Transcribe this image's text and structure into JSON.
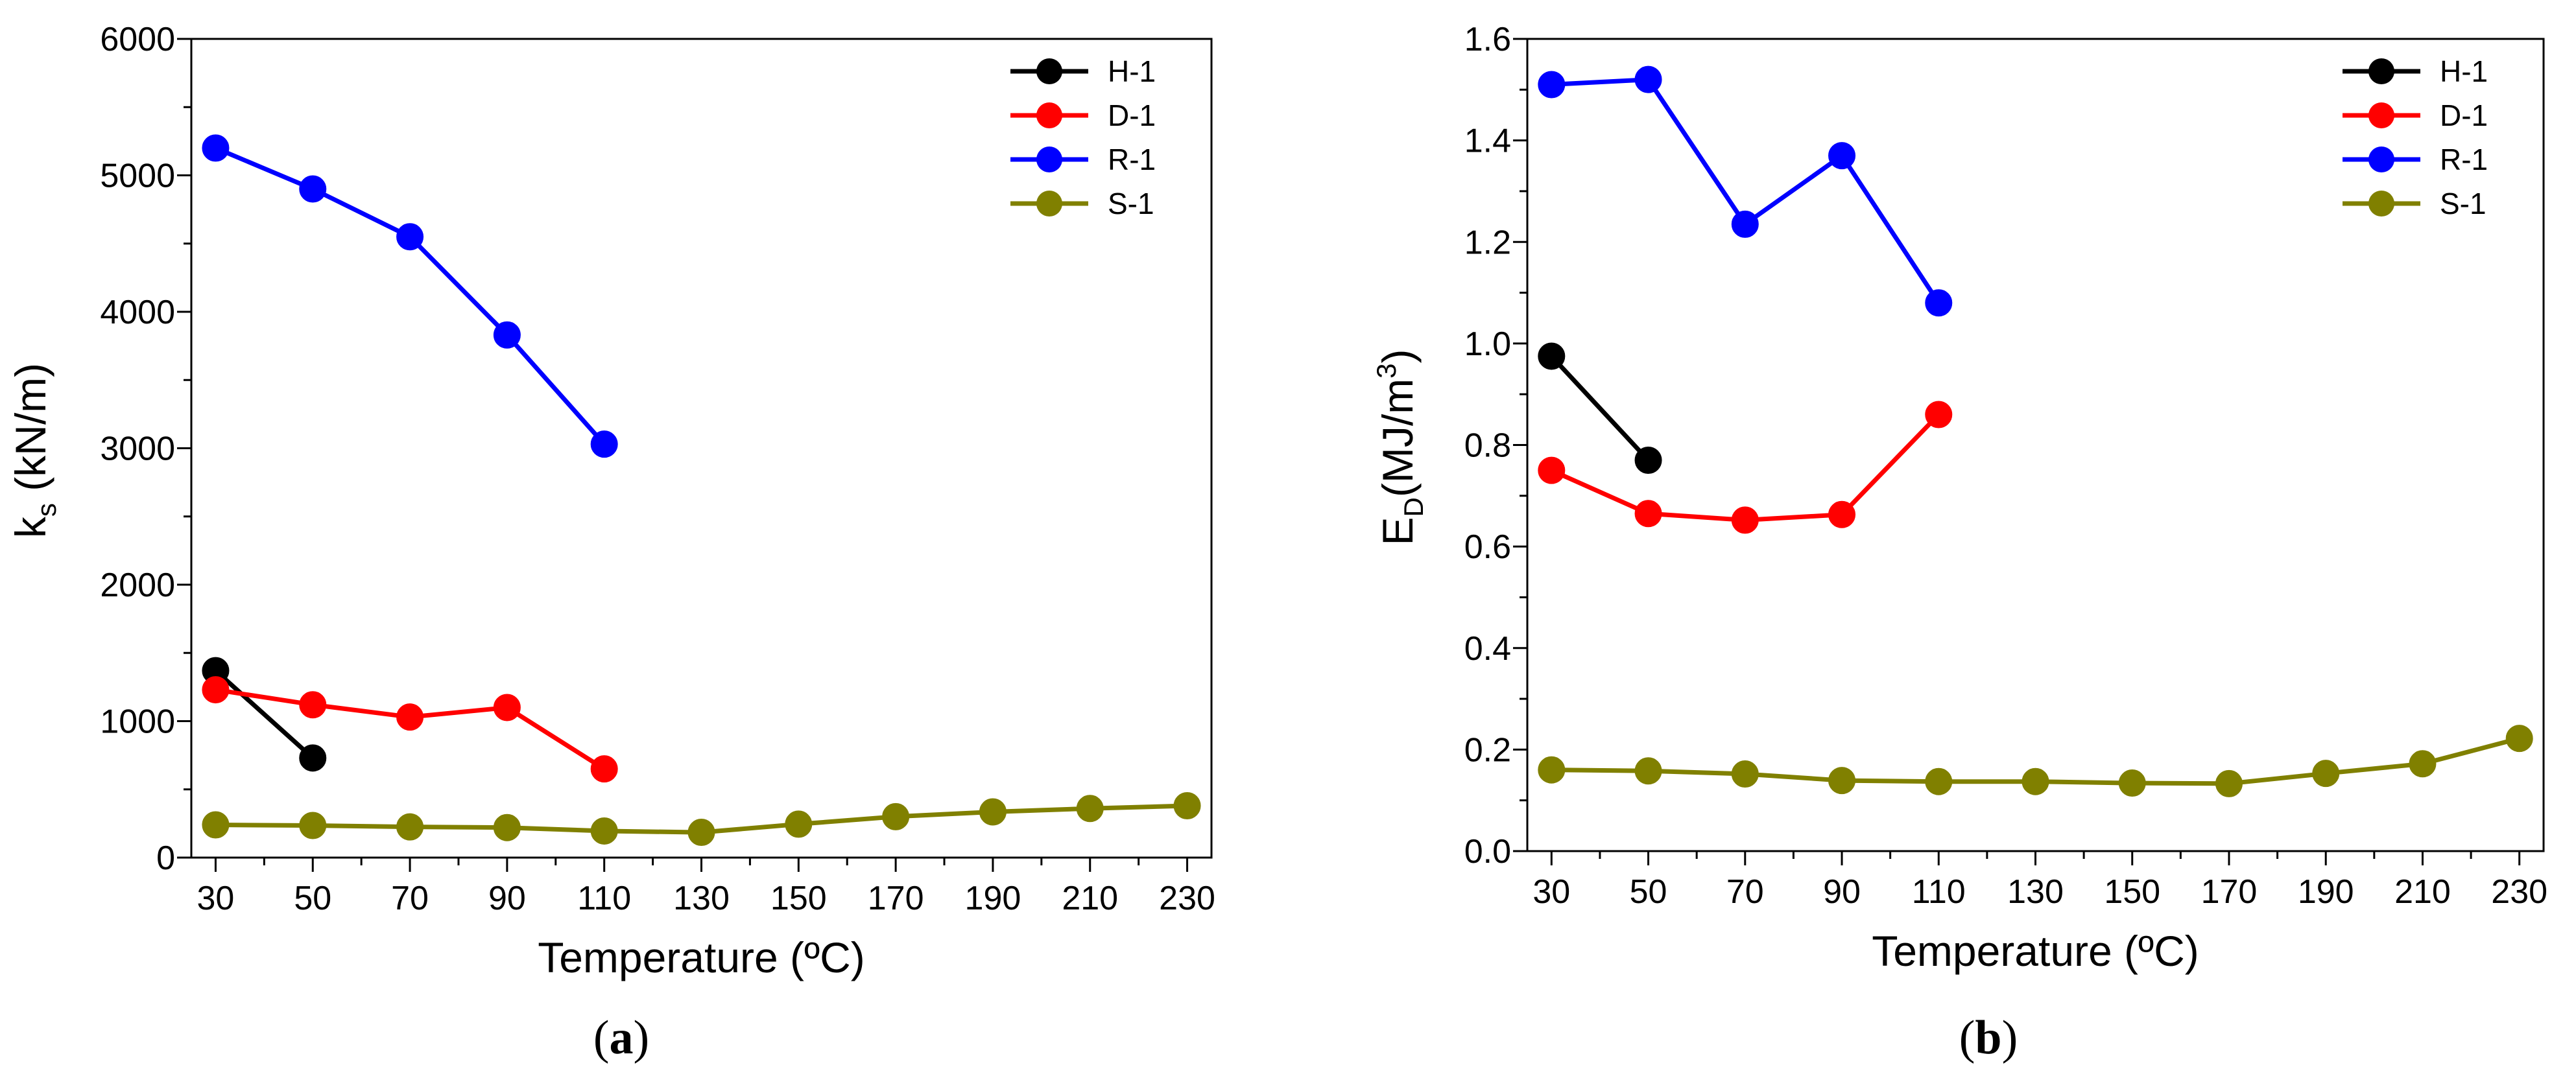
{
  "chart_data": [
    {
      "type": "line",
      "panel_label": "a",
      "xlabel": "Temperature (ºC)",
      "ylabel_main": "k",
      "ylabel_sub": "s",
      "ylabel_rest": " (kN/m)",
      "xlim": [
        25,
        235
      ],
      "ylim": [
        0,
        6000
      ],
      "x_ticks": [
        30,
        50,
        70,
        90,
        110,
        130,
        150,
        170,
        190,
        210,
        230
      ],
      "y_ticks": [
        0,
        1000,
        2000,
        3000,
        4000,
        5000,
        6000
      ],
      "y_tick_labels": [
        "0",
        "1000",
        "2000",
        "3000",
        "4000",
        "5000",
        "6000"
      ],
      "grid": false,
      "legend_position": "top-right",
      "series": [
        {
          "name": "H-1",
          "color": "#000000",
          "x": [
            30,
            50
          ],
          "y": [
            1370,
            730
          ]
        },
        {
          "name": "D-1",
          "color": "#ff0000",
          "x": [
            30,
            50,
            70,
            90,
            110
          ],
          "y": [
            1230,
            1120,
            1030,
            1100,
            650
          ]
        },
        {
          "name": "R-1",
          "color": "#0000ff",
          "x": [
            30,
            50,
            70,
            90,
            110
          ],
          "y": [
            5200,
            4900,
            4550,
            3830,
            3030
          ]
        },
        {
          "name": "S-1",
          "color": "#808000",
          "x": [
            30,
            50,
            70,
            90,
            110,
            130,
            150,
            170,
            190,
            210,
            230
          ],
          "y": [
            240,
            235,
            225,
            220,
            195,
            185,
            245,
            300,
            335,
            360,
            380
          ]
        }
      ]
    },
    {
      "type": "line",
      "panel_label": "b",
      "xlabel": "Temperature (ºC)",
      "ylabel_main": "E",
      "ylabel_sub": "D",
      "ylabel_rest": "(MJ/m",
      "ylabel_sup": "3",
      "ylabel_end": ")",
      "xlim": [
        25,
        235
      ],
      "ylim": [
        0,
        1.6
      ],
      "x_ticks": [
        30,
        50,
        70,
        90,
        110,
        130,
        150,
        170,
        190,
        210,
        230
      ],
      "y_ticks": [
        0,
        0.2,
        0.4,
        0.6,
        0.8,
        1.0,
        1.2,
        1.4,
        1.6
      ],
      "y_tick_labels": [
        "0.0",
        "0.2",
        "0.4",
        "0.6",
        "0.8",
        "1.0",
        "1.2",
        "1.4",
        "1.6"
      ],
      "grid": false,
      "legend_position": "top-right",
      "series": [
        {
          "name": "H-1",
          "color": "#000000",
          "x": [
            30,
            50
          ],
          "y": [
            0.975,
            0.77
          ]
        },
        {
          "name": "D-1",
          "color": "#ff0000",
          "x": [
            30,
            50,
            70,
            90,
            110
          ],
          "y": [
            0.75,
            0.665,
            0.652,
            0.663,
            0.86
          ]
        },
        {
          "name": "R-1",
          "color": "#0000ff",
          "x": [
            30,
            50,
            70,
            90,
            110
          ],
          "y": [
            1.51,
            1.52,
            1.235,
            1.37,
            1.08
          ]
        },
        {
          "name": "S-1",
          "color": "#808000",
          "x": [
            30,
            50,
            70,
            90,
            110,
            130,
            150,
            170,
            190,
            210,
            230
          ],
          "y": [
            0.16,
            0.158,
            0.152,
            0.139,
            0.137,
            0.137,
            0.134,
            0.133,
            0.153,
            0.172,
            0.222
          ]
        }
      ]
    }
  ]
}
